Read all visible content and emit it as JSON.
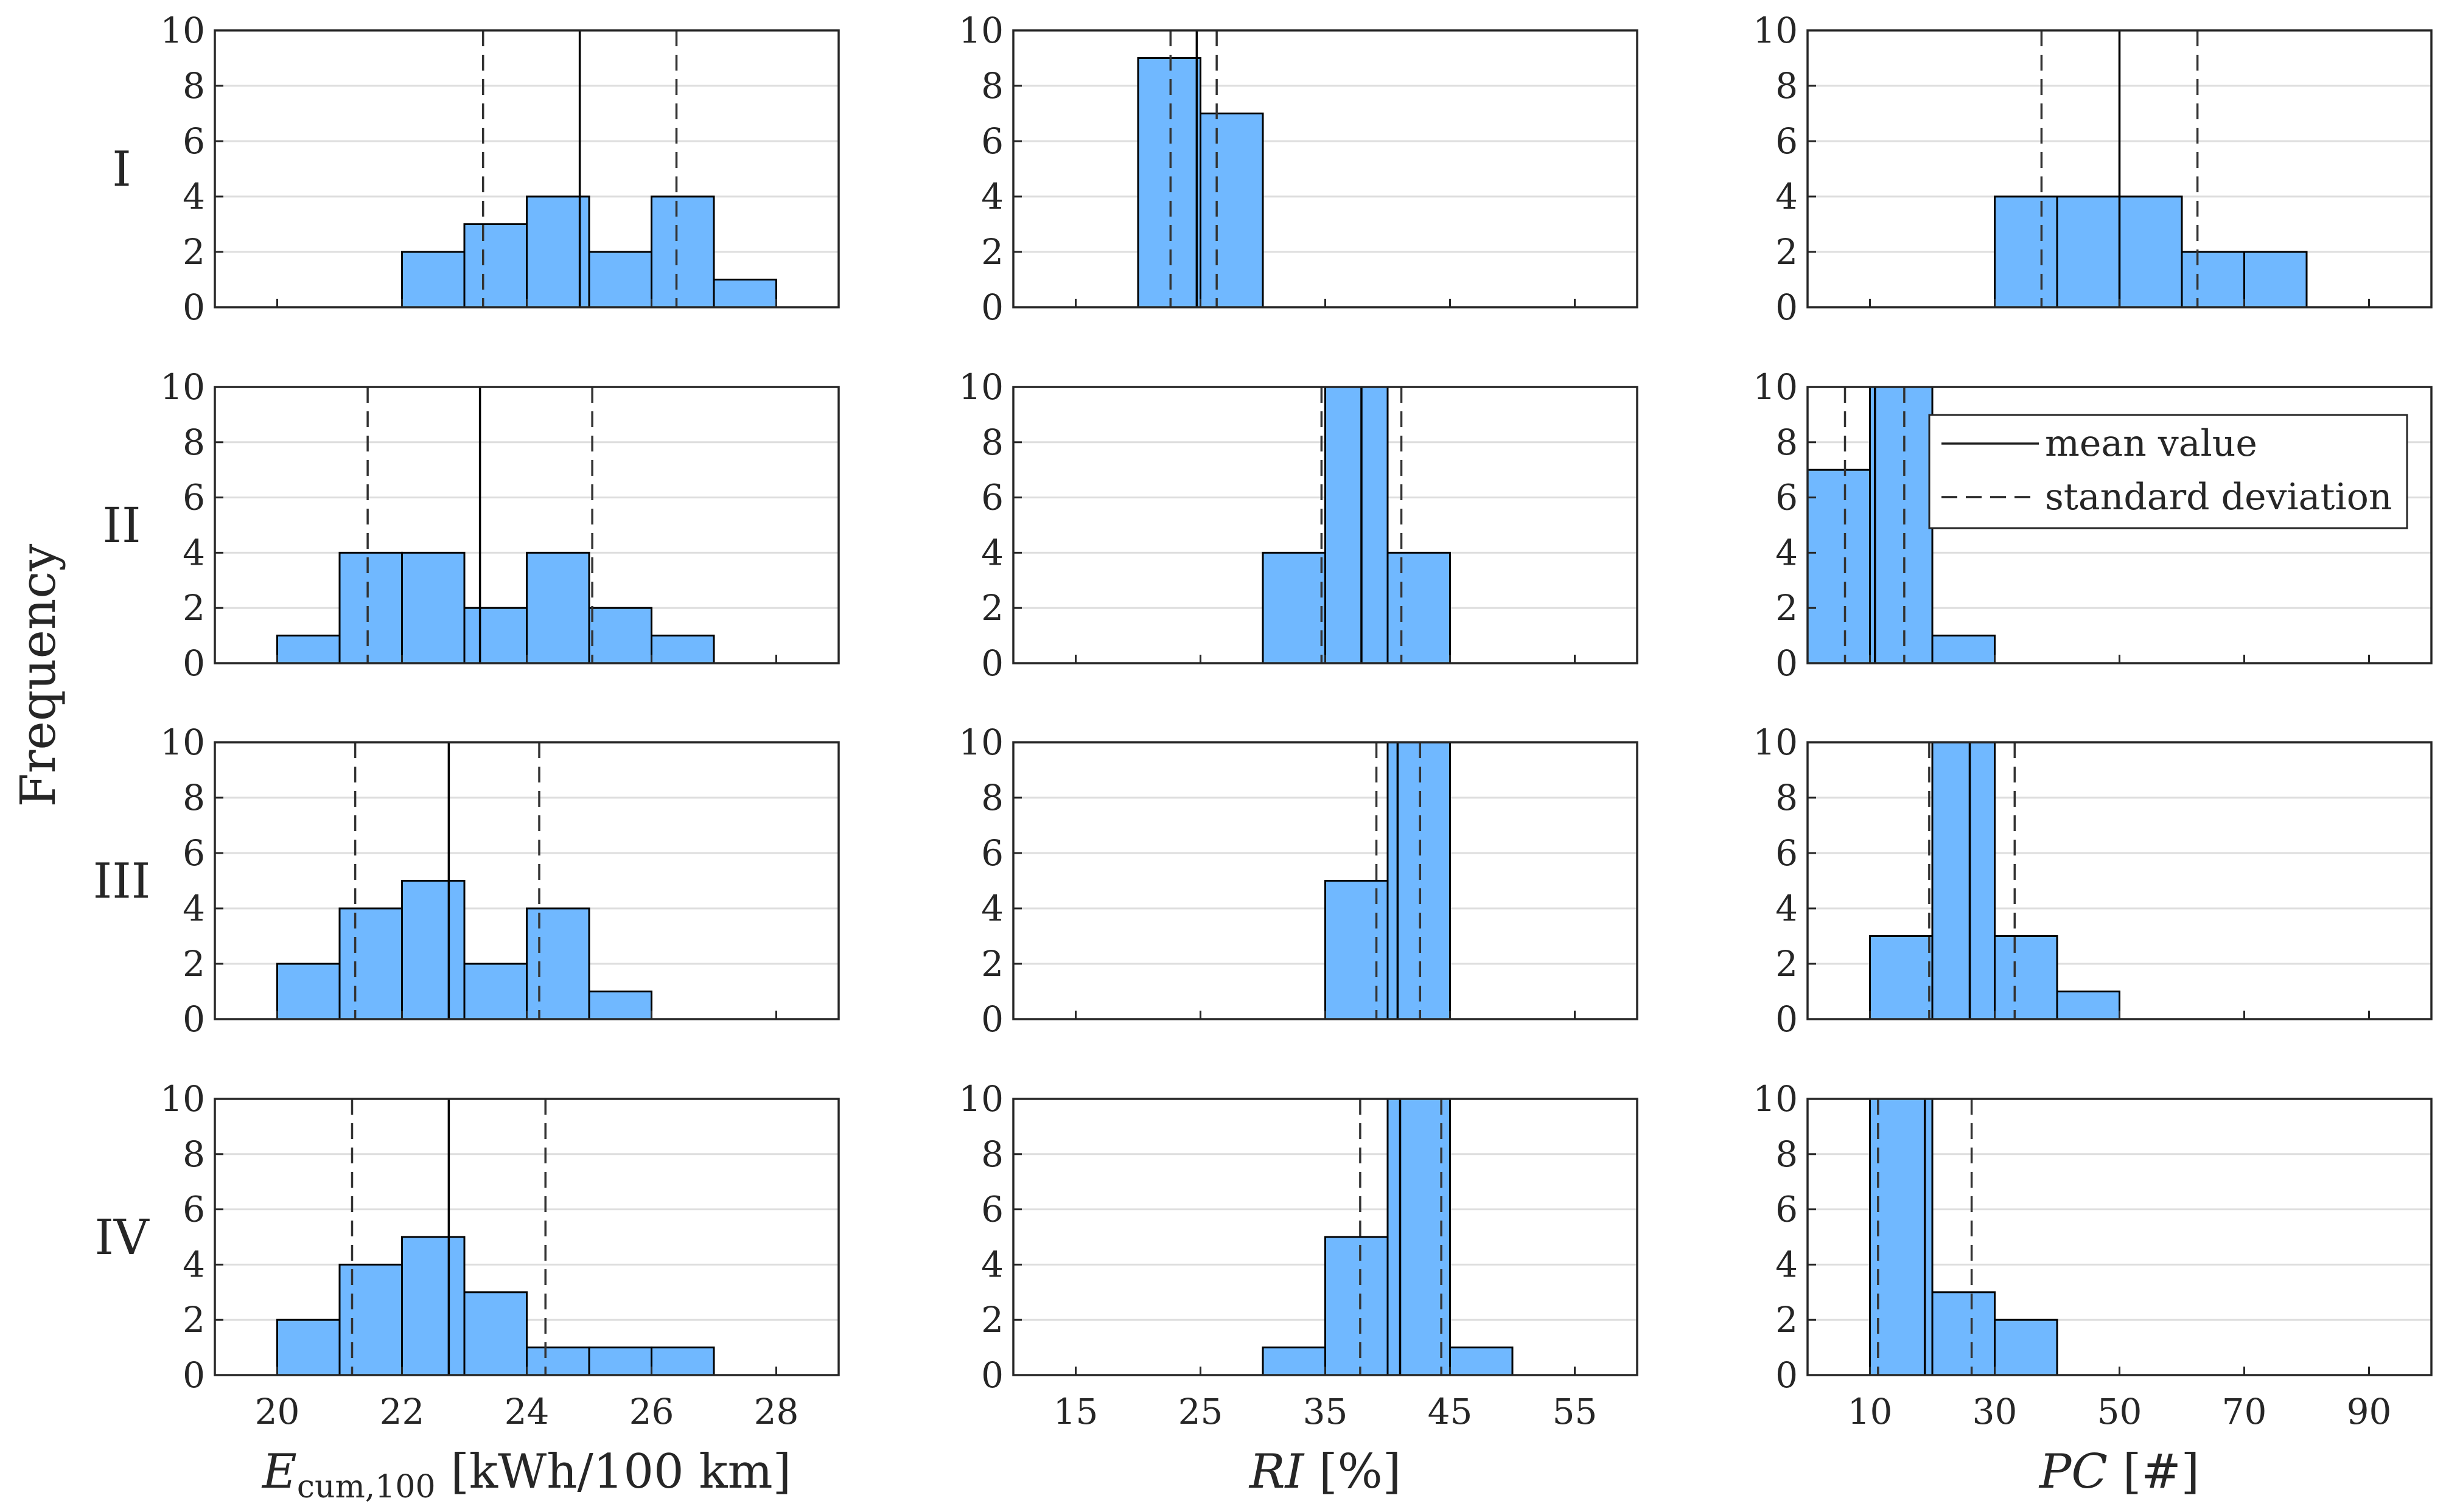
{
  "chart_data": {
    "type": "bar",
    "title": "",
    "ylabel": "Frequency",
    "ylim": [
      0,
      10
    ],
    "yticks": [
      0,
      2,
      4,
      6,
      8,
      10
    ],
    "grid": "horizontal",
    "rows": [
      "I",
      "II",
      "III",
      "IV"
    ],
    "columns": [
      {
        "xlabel": {
          "main": "E",
          "sub": "cum,100",
          "unit": "[kWh/100 km]"
        },
        "xlim": [
          19,
          29
        ],
        "xticks": [
          20,
          22,
          24,
          26,
          28
        ],
        "bin_width": 1,
        "panels": [
          {
            "row": "I",
            "bins": [
              [
                22,
                2
              ],
              [
                23,
                3
              ],
              [
                24,
                4
              ],
              [
                25,
                2
              ],
              [
                26,
                4
              ],
              [
                27,
                1
              ]
            ],
            "mean": 24.85,
            "std_low": 23.3,
            "std_high": 26.4
          },
          {
            "row": "II",
            "bins": [
              [
                20,
                1
              ],
              [
                21,
                4
              ],
              [
                22,
                4
              ],
              [
                23,
                2
              ],
              [
                24,
                4
              ],
              [
                25,
                2
              ],
              [
                26,
                1
              ]
            ],
            "mean": 23.25,
            "std_low": 21.45,
            "std_high": 25.05
          },
          {
            "row": "III",
            "bins": [
              [
                20,
                2
              ],
              [
                21,
                4
              ],
              [
                22,
                5
              ],
              [
                23,
                2
              ],
              [
                24,
                4
              ],
              [
                25,
                1
              ]
            ],
            "mean": 22.75,
            "std_low": 21.25,
            "std_high": 24.2
          },
          {
            "row": "IV",
            "bins": [
              [
                20,
                2
              ],
              [
                21,
                4
              ],
              [
                22,
                5
              ],
              [
                23,
                3
              ],
              [
                24,
                1
              ],
              [
                25,
                1
              ],
              [
                26,
                1
              ]
            ],
            "mean": 22.75,
            "std_low": 21.2,
            "std_high": 24.3
          }
        ]
      },
      {
        "xlabel": {
          "main": "RI",
          "sub": "",
          "unit": "[%]"
        },
        "xlim": [
          10,
          60
        ],
        "xticks": [
          15,
          25,
          35,
          45,
          55
        ],
        "bin_width": 5,
        "panels": [
          {
            "row": "I",
            "bins": [
              [
                20,
                9
              ],
              [
                25,
                7
              ]
            ],
            "mean": 24.7,
            "std_low": 22.6,
            "std_high": 26.3
          },
          {
            "row": "II",
            "bins": [
              [
                30,
                4
              ],
              [
                35,
                10
              ],
              [
                40,
                4
              ]
            ],
            "mean": 37.9,
            "std_low": 34.7,
            "std_high": 41.1
          },
          {
            "row": "III",
            "bins": [
              [
                35,
                5
              ],
              [
                40,
                10
              ]
            ],
            "mean": 40.8,
            "std_low": 39.1,
            "std_high": 42.6
          },
          {
            "row": "IV",
            "bins": [
              [
                30,
                1
              ],
              [
                35,
                5
              ],
              [
                40,
                10
              ],
              [
                45,
                1
              ]
            ],
            "mean": 41.0,
            "std_low": 37.8,
            "std_high": 44.3
          }
        ]
      },
      {
        "xlabel": {
          "main": "PC",
          "sub": "",
          "unit": "[#]"
        },
        "xlim": [
          0,
          100
        ],
        "xticks": [
          10,
          30,
          50,
          70,
          90
        ],
        "bin_width": 10,
        "panels": [
          {
            "row": "I",
            "bins": [
              [
                30,
                4
              ],
              [
                40,
                4
              ],
              [
                50,
                4
              ],
              [
                60,
                2
              ],
              [
                70,
                2
              ]
            ],
            "mean": 50,
            "std_low": 37.5,
            "std_high": 62.5
          },
          {
            "row": "II",
            "bins": [
              [
                0,
                7
              ],
              [
                10,
                10
              ],
              [
                20,
                1
              ]
            ],
            "mean": 10.8,
            "std_low": 6,
            "std_high": 15.5
          },
          {
            "row": "III",
            "bins": [
              [
                10,
                3
              ],
              [
                20,
                10
              ],
              [
                30,
                3
              ],
              [
                40,
                1
              ]
            ],
            "mean": 26,
            "std_low": 19.5,
            "std_high": 33.2
          },
          {
            "row": "IV",
            "bins": [
              [
                10,
                10
              ],
              [
                20,
                3
              ],
              [
                30,
                2
              ]
            ],
            "mean": 18.8,
            "std_low": 11.3,
            "std_high": 26.3
          }
        ]
      }
    ],
    "legend": {
      "placement": "top-right of panel II / PC",
      "entries": [
        {
          "label": "mean value",
          "style": "solid"
        },
        {
          "label": "standard deviation",
          "style": "dashed"
        }
      ]
    },
    "colors": {
      "bar": "#70b8ff",
      "edge": "#000000",
      "grid": "#dedede",
      "axis": "#262626"
    }
  }
}
